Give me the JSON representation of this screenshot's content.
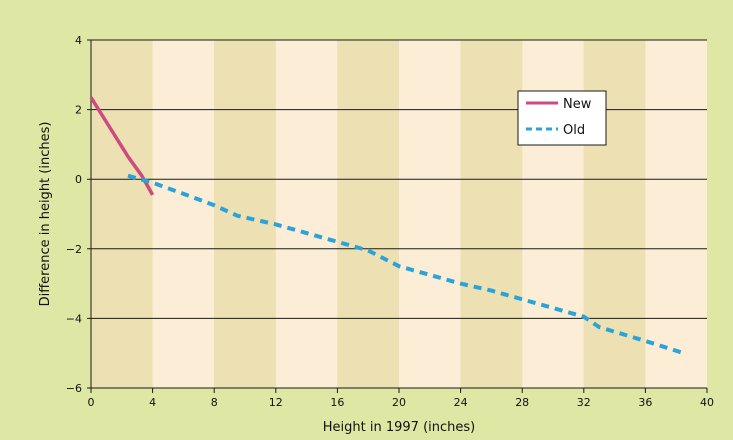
{
  "chart_data": {
    "type": "line",
    "title": "",
    "xlabel": "Height in 1997 (inches)",
    "ylabel": "Difference in height (inches)",
    "xlim": [
      0,
      40
    ],
    "ylim": [
      -6,
      4
    ],
    "x_ticks": [
      "0",
      "4",
      "8",
      "12",
      "16",
      "20",
      "24",
      "28",
      "32",
      "36",
      "40"
    ],
    "y_ticks": [
      "4",
      "2",
      "0",
      "−2",
      "−4",
      "−6"
    ],
    "grid": "horizontal",
    "legend_position": "top-right",
    "series": [
      {
        "name": "New",
        "style": "solid",
        "color": "#cf4a7f",
        "points": [
          [
            0,
            2.35
          ],
          [
            1.2,
            1.5
          ],
          [
            2.4,
            0.65
          ],
          [
            3.3,
            0.1
          ],
          [
            4,
            -0.45
          ]
        ]
      },
      {
        "name": "Old",
        "style": "dashed",
        "color": "#2aa3d9",
        "points": [
          [
            2.4,
            0.1
          ],
          [
            4,
            -0.1
          ],
          [
            6.5,
            -0.5
          ],
          [
            8,
            -0.75
          ],
          [
            9.5,
            -1.05
          ],
          [
            12,
            -1.3
          ],
          [
            14,
            -1.55
          ],
          [
            16,
            -1.8
          ],
          [
            18,
            -2.05
          ],
          [
            20,
            -2.5
          ],
          [
            22,
            -2.75
          ],
          [
            24,
            -3.0
          ],
          [
            26,
            -3.2
          ],
          [
            28,
            -3.45
          ],
          [
            30,
            -3.7
          ],
          [
            32,
            -3.95
          ],
          [
            33,
            -4.25
          ],
          [
            36,
            -4.65
          ],
          [
            38.5,
            -5.0
          ]
        ]
      }
    ],
    "colors": {
      "background": "#dfe7a4",
      "band_dark": "#ede0b3",
      "band_light": "#fbedd6",
      "grid": "#1a1a1a"
    }
  }
}
